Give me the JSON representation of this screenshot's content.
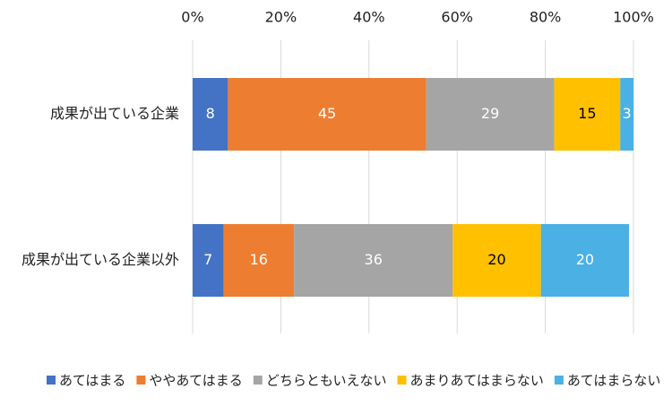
{
  "chart_data": {
    "type": "stacked-bar-horizontal",
    "categories": [
      "成果が出ている企業",
      "成果が出ている企業以外"
    ],
    "series": [
      {
        "name": "あてはまる",
        "color": "#4472c4",
        "values": [
          8,
          7
        ]
      },
      {
        "name": "ややあてはまる",
        "color": "#ed7d31",
        "values": [
          45,
          16
        ]
      },
      {
        "name": "どちらともいえない",
        "color": "#a5a5a5",
        "values": [
          29,
          36
        ]
      },
      {
        "name": "あまりあてはまらない",
        "color": "#ffc000",
        "values": [
          15,
          20
        ]
      },
      {
        "name": "あてはまらない",
        "color": "#4bb0e4",
        "values": [
          3,
          20
        ]
      }
    ],
    "xlim": [
      0,
      100
    ],
    "xticks": [
      {
        "value": 0,
        "label": "0%"
      },
      {
        "value": 20,
        "label": "20%"
      },
      {
        "value": 40,
        "label": "40%"
      },
      {
        "value": 60,
        "label": "60%"
      },
      {
        "value": 80,
        "label": "80%"
      },
      {
        "value": 100,
        "label": "100%"
      }
    ],
    "grid": true,
    "legend": "bottom"
  }
}
